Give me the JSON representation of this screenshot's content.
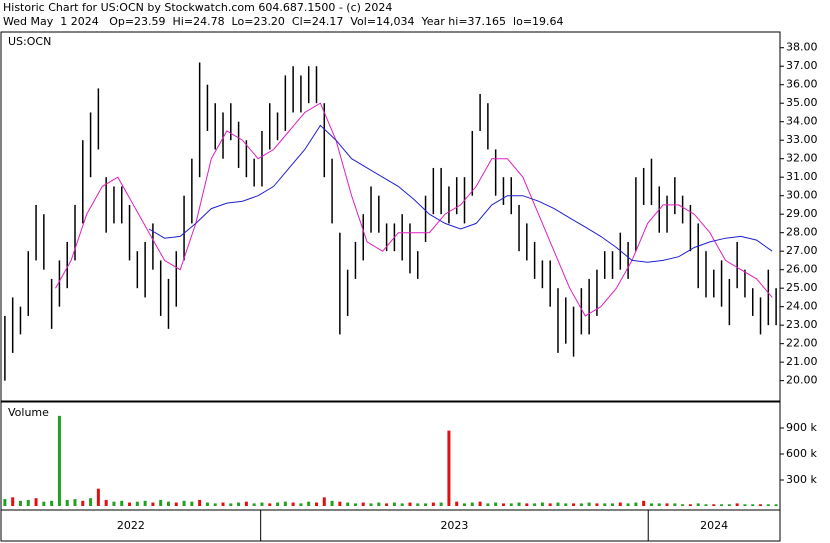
{
  "chart_data": {
    "type": "stock",
    "title": "Historic Chart for US:OCN by Stockwatch.com 604.687.1500 - (c) 2024",
    "subtitle": "Wed May  1 2024   Op=23.59  Hi=24.78  Lo=23.20  Cl=24.17  Vol=14,034  Year hi=37.165  lo=19.64",
    "xlim": [
      2022.33,
      2024.34
    ],
    "xticks": [
      2023,
      2024
    ],
    "year_labels": [
      "2022",
      "2023",
      "2024"
    ],
    "ylim": [
      18.9,
      38.85
    ],
    "yticks": [
      {
        "value": 20,
        "label": "20.00"
      },
      {
        "value": 21,
        "label": "21.00"
      },
      {
        "value": 22,
        "label": "22.00"
      },
      {
        "value": 23,
        "label": "23.00"
      },
      {
        "value": 24,
        "label": "24.00"
      },
      {
        "value": 25,
        "label": "25.00"
      },
      {
        "value": 26,
        "label": "26.00"
      },
      {
        "value": 27,
        "label": "27.00"
      },
      {
        "value": 28,
        "label": "28.00"
      },
      {
        "value": 29,
        "label": "29.00"
      },
      {
        "value": 30,
        "label": "30.00"
      },
      {
        "value": 31,
        "label": "31.00"
      },
      {
        "value": 32,
        "label": "32.00"
      },
      {
        "value": 33,
        "label": "33.00"
      },
      {
        "value": 34,
        "label": "34.00"
      },
      {
        "value": 35,
        "label": "35.00"
      },
      {
        "value": 36,
        "label": "36.00"
      },
      {
        "value": 37,
        "label": "37.00"
      },
      {
        "value": 38,
        "label": "38.00"
      }
    ],
    "price": {
      "name": "US:OCN",
      "color": "#000000",
      "high": [
        23.5,
        24.5,
        24.0,
        27.0,
        29.5,
        29.0,
        25.5,
        26.5,
        27.5,
        29.5,
        33.0,
        34.5,
        35.8,
        31.0,
        30.5,
        30.5,
        29.5,
        27.0,
        27.5,
        28.5,
        26.5,
        25.5,
        27.0,
        30.0,
        32.0,
        37.2,
        36.0,
        35.0,
        34.5,
        35.0,
        34.0,
        33.0,
        32.0,
        33.5,
        35.0,
        34.5,
        36.5,
        37.0,
        36.5,
        37.0,
        37.0,
        35.0,
        32.0,
        28.0,
        26.0,
        27.5,
        29.0,
        30.5,
        30.0,
        28.5,
        28.5,
        29.0,
        28.5,
        27.0,
        30.0,
        31.5,
        31.5,
        30.5,
        31.0,
        31.0,
        33.5,
        35.5,
        35.0,
        32.5,
        31.0,
        31.0,
        29.5,
        28.5,
        27.5,
        26.5,
        26.5,
        25.0,
        24.5,
        24.0,
        25.0,
        25.5,
        26.0,
        27.0,
        27.0,
        28.0,
        27.5,
        31.0,
        31.5,
        32.0,
        30.5,
        30.0,
        31.0,
        30.0,
        29.5,
        28.5,
        27.0,
        26.0,
        26.5,
        25.5,
        27.5,
        26.0,
        25.0,
        24.5,
        26.0,
        25.0
      ],
      "low": [
        20.0,
        21.5,
        22.5,
        23.5,
        26.5,
        26.0,
        22.8,
        24.0,
        25.0,
        26.5,
        28.5,
        31.0,
        32.5,
        28.0,
        28.5,
        28.5,
        26.5,
        25.0,
        24.5,
        26.0,
        23.5,
        22.8,
        24.0,
        26.5,
        28.5,
        31.0,
        33.5,
        32.5,
        32.0,
        33.0,
        31.5,
        31.0,
        30.5,
        30.5,
        32.5,
        33.0,
        33.5,
        34.5,
        34.5,
        35.0,
        35.0,
        31.0,
        28.5,
        22.5,
        23.5,
        25.5,
        26.5,
        28.0,
        28.0,
        27.0,
        27.0,
        26.5,
        25.8,
        25.5,
        27.5,
        29.0,
        29.0,
        28.5,
        29.0,
        28.5,
        30.0,
        33.5,
        32.5,
        30.0,
        29.5,
        29.0,
        27.0,
        26.5,
        25.5,
        25.0,
        24.0,
        21.5,
        22.0,
        21.3,
        22.5,
        22.5,
        23.5,
        25.5,
        25.5,
        26.0,
        25.5,
        27.0,
        29.5,
        29.5,
        28.0,
        28.0,
        29.0,
        28.5,
        27.0,
        25.0,
        24.5,
        24.5,
        24.0,
        23.0,
        25.0,
        24.5,
        23.5,
        22.5,
        23.0,
        23.0
      ]
    },
    "ma": [
      {
        "color": "#e020c0",
        "values": [
          null,
          null,
          null,
          25.0,
          26.5,
          29.0,
          30.5,
          31.0,
          29.5,
          28.0,
          26.5,
          26.0,
          28.5,
          32.0,
          33.5,
          33.0,
          32.0,
          32.5,
          33.5,
          34.5,
          35.0,
          33.0,
          30.0,
          27.5,
          27.0,
          28.0,
          28.0,
          28.0,
          29.0,
          29.5,
          30.5,
          32.0,
          32.0,
          31.0,
          29.0,
          27.0,
          25.0,
          23.5,
          24.0,
          25.0,
          26.5,
          28.5,
          29.5,
          29.5,
          29.0,
          28.0,
          26.5,
          26.0,
          25.5,
          24.5
        ]
      },
      {
        "color": "#2020d0",
        "values": [
          null,
          null,
          null,
          null,
          null,
          null,
          null,
          null,
          null,
          28.2,
          27.7,
          27.8,
          28.5,
          29.3,
          29.6,
          29.7,
          30.0,
          30.5,
          31.5,
          32.5,
          33.8,
          33.0,
          32.0,
          31.5,
          31.0,
          30.5,
          29.8,
          29.0,
          28.5,
          28.2,
          28.5,
          29.5,
          30.0,
          30.0,
          29.7,
          29.3,
          28.8,
          28.3,
          27.8,
          27.2,
          26.5,
          26.4,
          26.5,
          26.7,
          27.2,
          27.5,
          27.7,
          27.8,
          27.6,
          27.0
        ]
      }
    ],
    "volume": {
      "name": "Volume",
      "ylim": [
        0,
        1200000
      ],
      "yticks": [
        {
          "value": 300000,
          "label": "300 k"
        },
        {
          "value": 600000,
          "label": "600 k"
        },
        {
          "value": 900000,
          "label": "900 k"
        }
      ],
      "values": [
        80000,
        100000,
        60000,
        70000,
        90000,
        50000,
        60000,
        1040000,
        70000,
        80000,
        60000,
        90000,
        200000,
        70000,
        50000,
        60000,
        40000,
        50000,
        60000,
        40000,
        70000,
        50000,
        40000,
        60000,
        50000,
        70000,
        40000,
        30000,
        40000,
        30000,
        40000,
        50000,
        30000,
        40000,
        30000,
        40000,
        50000,
        40000,
        30000,
        50000,
        40000,
        100000,
        60000,
        50000,
        40000,
        30000,
        40000,
        30000,
        40000,
        30000,
        40000,
        30000,
        40000,
        30000,
        30000,
        40000,
        40000,
        870000,
        50000,
        30000,
        40000,
        50000,
        30000,
        40000,
        30000,
        30000,
        40000,
        30000,
        30000,
        40000,
        30000,
        40000,
        30000,
        30000,
        30000,
        40000,
        30000,
        30000,
        30000,
        40000,
        30000,
        40000,
        60000,
        30000,
        30000,
        30000,
        30000,
        20000,
        20000,
        30000,
        20000,
        20000,
        20000,
        20000,
        30000,
        20000,
        20000,
        20000,
        20000,
        20000
      ],
      "colors": [
        "#22a022",
        "#e01010",
        "#22a022",
        "#22a022",
        "#e01010",
        "#22a022",
        "#22a022",
        "#22a022",
        "#22a022",
        "#22a022",
        "#e01010",
        "#22a022",
        "#e01010",
        "#e01010",
        "#22a022",
        "#22a022",
        "#e01010",
        "#22a022",
        "#22a022",
        "#e01010",
        "#22a022",
        "#22a022",
        "#e01010",
        "#22a022",
        "#22a022",
        "#e01010",
        "#22a022",
        "#22a022",
        "#e01010",
        "#22a022",
        "#22a022",
        "#e01010",
        "#22a022",
        "#22a022",
        "#e01010",
        "#22a022",
        "#22a022",
        "#e01010",
        "#22a022",
        "#22a022",
        "#e01010",
        "#e01010",
        "#22a022",
        "#e01010",
        "#22a022",
        "#22a022",
        "#e01010",
        "#22a022",
        "#22a022",
        "#e01010",
        "#22a022",
        "#22a022",
        "#e01010",
        "#22a022",
        "#22a022",
        "#e01010",
        "#22a022",
        "#e01010",
        "#e01010",
        "#22a022",
        "#22a022",
        "#e01010",
        "#22a022",
        "#22a022",
        "#e01010",
        "#22a022",
        "#22a022",
        "#e01010",
        "#22a022",
        "#22a022",
        "#e01010",
        "#22a022",
        "#22a022",
        "#e01010",
        "#22a022",
        "#22a022",
        "#e01010",
        "#22a022",
        "#22a022",
        "#e01010",
        "#22a022",
        "#22a022",
        "#e01010",
        "#22a022",
        "#22a022",
        "#e01010",
        "#22a022",
        "#22a022",
        "#e01010",
        "#22a022",
        "#22a022",
        "#e01010",
        "#22a022",
        "#22a022",
        "#e01010",
        "#22a022",
        "#22a022",
        "#e01010",
        "#22a022",
        "#22a022"
      ]
    }
  }
}
